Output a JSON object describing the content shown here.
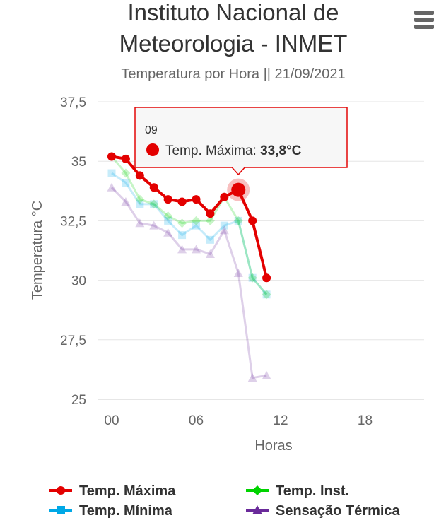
{
  "menu_icon": "hamburger-menu-icon",
  "chart_data": {
    "type": "line",
    "title_lines": [
      "Instituto Nacional de",
      "Meteorologia - INMET"
    ],
    "subtitle": "Temperatura por Hora || 21/09/2021",
    "xlabel": "Horas",
    "ylabel": "Temperatura °C",
    "xlim": [
      0,
      21
    ],
    "ylim": [
      25,
      37.5
    ],
    "x_ticks": [
      0,
      6,
      12,
      18
    ],
    "x_tick_labels": [
      "00",
      "06",
      "12",
      "18"
    ],
    "y_ticks": [
      25,
      27.5,
      30,
      32.5,
      35,
      37.5
    ],
    "y_tick_labels": [
      "25",
      "27,5",
      "30",
      "32,5",
      "35",
      "37,5"
    ],
    "grid": true,
    "legend_position": "bottom",
    "x": [
      0,
      1,
      2,
      3,
      4,
      5,
      6,
      7,
      8,
      9,
      10,
      11
    ],
    "series": [
      {
        "name": "Temp. Máxima",
        "color": "#e30000",
        "marker": "circle",
        "values": [
          35.2,
          35.1,
          34.4,
          33.9,
          33.4,
          33.3,
          33.4,
          32.8,
          33.5,
          33.8,
          32.5,
          30.1
        ]
      },
      {
        "name": "Temp. Mínima",
        "color": "#00a8e6",
        "marker": "square",
        "values": [
          34.5,
          34.1,
          33.2,
          33.2,
          32.5,
          31.9,
          32.3,
          31.7,
          32.3,
          32.5,
          30.1,
          29.4
        ]
      },
      {
        "name": "Temp. Inst.",
        "color": "#00d300",
        "marker": "diamond",
        "values": [
          35.2,
          34.5,
          33.4,
          33.2,
          32.7,
          32.4,
          32.5,
          32.5,
          33.5,
          32.5,
          30.1,
          29.4
        ]
      },
      {
        "name": "Sensação Térmica",
        "color": "#6a2a9a",
        "marker": "triangle",
        "values": [
          33.9,
          33.3,
          32.4,
          32.3,
          32.0,
          31.3,
          31.3,
          31.1,
          32.1,
          30.3,
          25.9,
          26.0
        ]
      }
    ],
    "legend_order": [
      "Temp. Máxima",
      "Temp. Inst.",
      "Temp. Mínima",
      "Sensação Térmica"
    ],
    "highlight_series": "Temp. Máxima",
    "tooltip": {
      "x_label": "09",
      "series": "Temp. Máxima",
      "name_text": "Temp. Máxima: ",
      "value_text": "33,8°C",
      "point_index": 9
    }
  }
}
